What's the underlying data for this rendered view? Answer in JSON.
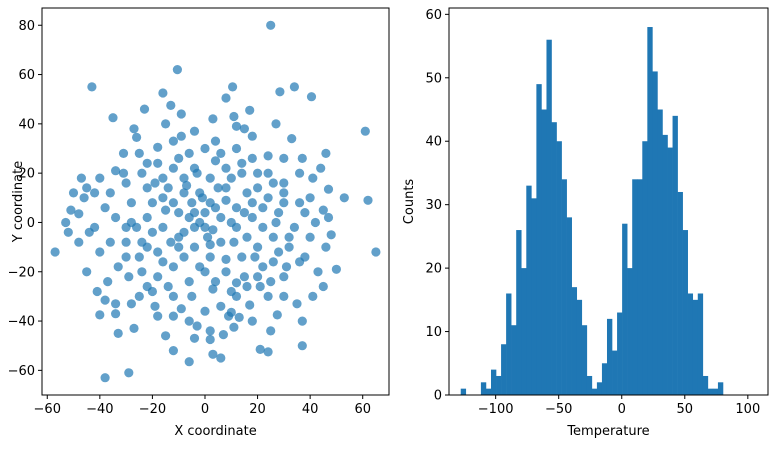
{
  "chart_data": [
    {
      "type": "scatter",
      "xlabel": "X coordinate",
      "ylabel": "Y coordinate",
      "xlim": [
        -62,
        70
      ],
      "ylim": [
        -70,
        87
      ],
      "xticks": [
        -60,
        -40,
        -20,
        0,
        20,
        40,
        60
      ],
      "yticks": [
        -60,
        -40,
        -20,
        0,
        20,
        40,
        60,
        80
      ],
      "color": "#1f77b4",
      "alpha": 0.7,
      "points": [
        [
          25,
          80
        ],
        [
          -10.5,
          62
        ],
        [
          -43,
          55
        ],
        [
          10.5,
          55
        ],
        [
          34,
          55
        ],
        [
          28.5,
          53
        ],
        [
          40.5,
          51
        ],
        [
          8,
          50.5
        ],
        [
          -16,
          52.5
        ],
        [
          -13,
          47.5
        ],
        [
          -23,
          46
        ],
        [
          -9,
          44
        ],
        [
          17,
          45.5
        ],
        [
          -35,
          42.5
        ],
        [
          11,
          43
        ],
        [
          -38,
          -63
        ],
        [
          -29,
          -61
        ],
        [
          6,
          -55
        ],
        [
          -6,
          -56.5
        ],
        [
          3,
          -53.5
        ],
        [
          21,
          -51.5
        ],
        [
          37,
          -50
        ],
        [
          24,
          -52.5
        ],
        [
          -12,
          -52
        ],
        [
          -15,
          -46
        ],
        [
          2,
          -47.5
        ],
        [
          -27,
          -43
        ],
        [
          -33,
          -45
        ],
        [
          50,
          -19
        ],
        [
          -57,
          -12
        ],
        [
          -51,
          5
        ],
        [
          61,
          37
        ],
        [
          62,
          9
        ],
        [
          65,
          -12
        ],
        [
          -45,
          14
        ],
        [
          -48,
          3.5
        ],
        [
          -12,
          -38
        ],
        [
          -4,
          -47
        ],
        [
          2,
          -44
        ],
        [
          7,
          -45.5
        ],
        [
          11,
          -42.5
        ],
        [
          10,
          -36.5
        ],
        [
          13,
          -38.5
        ],
        [
          25,
          -44
        ],
        [
          27.5,
          -37.5
        ],
        [
          37,
          -40
        ],
        [
          41,
          -30
        ],
        [
          35,
          -33
        ],
        [
          30,
          -30
        ],
        [
          17,
          -33.5
        ],
        [
          -34,
          -37
        ],
        [
          -40,
          -37.5
        ],
        [
          -38,
          -31.5
        ],
        [
          -34,
          -33
        ],
        [
          -28,
          -33
        ],
        [
          -25,
          -30
        ],
        [
          -22,
          -26
        ],
        [
          -18,
          -38
        ],
        [
          -19,
          -34
        ],
        [
          -9,
          -35
        ],
        [
          -5,
          -30
        ],
        [
          3,
          -27
        ],
        [
          12,
          -24.5
        ],
        [
          21,
          -26
        ],
        [
          43,
          -20
        ],
        [
          46,
          -10
        ],
        [
          48,
          -5
        ],
        [
          45,
          5
        ],
        [
          40,
          10
        ],
        [
          47,
          13.5
        ],
        [
          44,
          22
        ],
        [
          46,
          28
        ],
        [
          33,
          34
        ],
        [
          30,
          26
        ],
        [
          24,
          27
        ],
        [
          18,
          35
        ],
        [
          12,
          39
        ],
        [
          4,
          33
        ],
        [
          -4,
          37
        ],
        [
          -12,
          33
        ],
        [
          -18,
          30.5
        ],
        [
          -22,
          24
        ],
        [
          -26,
          34.5
        ],
        [
          -31,
          28
        ],
        [
          -34,
          21
        ],
        [
          -40,
          18
        ],
        [
          -42,
          12
        ],
        [
          -38,
          6
        ],
        [
          -44,
          -4
        ],
        [
          -40,
          -12
        ],
        [
          -33,
          -18
        ],
        [
          -29,
          -22
        ],
        [
          -25,
          -14
        ],
        [
          -30,
          -8
        ],
        [
          -20,
          -4
        ],
        [
          -15,
          5
        ],
        [
          -8,
          12
        ],
        [
          -3,
          20
        ],
        [
          4,
          25
        ],
        [
          10,
          18
        ],
        [
          16,
          12
        ],
        [
          22,
          6
        ],
        [
          27,
          0
        ],
        [
          32,
          -6
        ],
        [
          28,
          -12
        ],
        [
          22,
          -18
        ],
        [
          15,
          -22
        ],
        [
          8,
          -15
        ],
        [
          2,
          -9
        ],
        [
          -4,
          -2
        ],
        [
          -10,
          4
        ],
        [
          -16,
          10
        ],
        [
          -22,
          14
        ],
        [
          -28,
          8
        ],
        [
          -34,
          2
        ],
        [
          -30,
          -2
        ],
        [
          -24,
          -8
        ],
        [
          -18,
          -12
        ],
        [
          -12,
          -18
        ],
        [
          -6,
          -24
        ],
        [
          0,
          -20
        ],
        [
          6,
          -8
        ],
        [
          12,
          -2
        ],
        [
          18,
          2
        ],
        [
          24,
          10
        ],
        [
          30,
          16
        ],
        [
          36,
          20
        ],
        [
          38,
          4
        ],
        [
          34,
          -2
        ],
        [
          40,
          -6
        ],
        [
          36,
          -16
        ],
        [
          30,
          -22
        ],
        [
          24,
          -30
        ],
        [
          18,
          -40
        ],
        [
          12,
          -30
        ],
        [
          6,
          -34
        ],
        [
          0,
          -36
        ],
        [
          -6,
          -40
        ],
        [
          -12,
          -30
        ],
        [
          -18,
          -22
        ],
        [
          -24,
          -20
        ],
        [
          -30,
          -14
        ],
        [
          -36,
          -8
        ],
        [
          -42,
          -2
        ],
        [
          -48,
          -8
        ],
        [
          -52,
          -4
        ],
        [
          -46,
          10
        ],
        [
          -50,
          12
        ],
        [
          -36,
          12
        ],
        [
          -30,
          16
        ],
        [
          -24,
          20
        ],
        [
          -18,
          24
        ],
        [
          -12,
          22
        ],
        [
          -6,
          28
        ],
        [
          0,
          30
        ],
        [
          6,
          28
        ],
        [
          12,
          30
        ],
        [
          18,
          26
        ],
        [
          24,
          20
        ],
        [
          30,
          8
        ],
        [
          26,
          -6
        ],
        [
          20,
          -10
        ],
        [
          14,
          -14
        ],
        [
          8,
          -20
        ],
        [
          2,
          -14
        ],
        [
          -4,
          -10
        ],
        [
          -10,
          -6
        ],
        [
          -16,
          -2
        ],
        [
          -22,
          2
        ],
        [
          -28,
          0
        ],
        [
          -20,
          8
        ],
        [
          -14,
          14
        ],
        [
          -8,
          18
        ],
        [
          -2,
          12
        ],
        [
          4,
          6
        ],
        [
          10,
          0
        ],
        [
          16,
          -6
        ],
        [
          22,
          -2
        ],
        [
          28,
          4
        ],
        [
          20,
          14
        ],
        [
          14,
          20
        ],
        [
          8,
          14
        ],
        [
          2,
          8
        ],
        [
          -4,
          4
        ],
        [
          -10,
          -10
        ],
        [
          -16,
          -16
        ],
        [
          -22,
          -10
        ],
        [
          -26,
          -2
        ],
        [
          -20,
          -28
        ],
        [
          -14,
          -26
        ],
        [
          -8,
          -14
        ],
        [
          -2,
          -18
        ],
        [
          4,
          -24
        ],
        [
          10,
          -28
        ],
        [
          16,
          -26
        ],
        [
          20,
          -22
        ],
        [
          26,
          -16
        ],
        [
          32,
          -10
        ],
        [
          38,
          -14
        ],
        [
          42,
          0
        ],
        [
          36,
          8
        ],
        [
          30,
          12
        ],
        [
          26,
          16
        ],
        [
          20,
          20
        ],
        [
          14,
          24
        ],
        [
          8,
          22
        ],
        [
          2,
          18
        ],
        [
          -4,
          22
        ],
        [
          -10,
          26
        ],
        [
          -16,
          18
        ],
        [
          -12,
          8
        ],
        [
          -6,
          2
        ],
        [
          0,
          -2
        ],
        [
          6,
          2
        ],
        [
          12,
          6
        ],
        [
          18,
          8
        ],
        [
          0,
          4
        ],
        [
          -2,
          0
        ],
        [
          3,
          -3
        ],
        [
          -5,
          8
        ],
        [
          8,
          9
        ],
        [
          -8,
          -4
        ],
        [
          5,
          14
        ],
        [
          -1,
          10
        ],
        [
          11,
          -8
        ],
        [
          -13,
          -8
        ],
        [
          1,
          -6
        ],
        [
          -7,
          15
        ],
        [
          15,
          4
        ],
        [
          -19,
          16
        ],
        [
          19,
          -14
        ],
        [
          -25,
          28
        ],
        [
          25,
          -24
        ],
        [
          -31,
          20
        ],
        [
          31,
          -18
        ],
        [
          -37,
          -24
        ],
        [
          37,
          26
        ],
        [
          -9,
          35
        ],
        [
          9,
          -38
        ],
        [
          -15,
          40
        ],
        [
          15,
          38
        ],
        [
          -27,
          38
        ],
        [
          27,
          40
        ],
        [
          -3,
          -42
        ],
        [
          3,
          42
        ],
        [
          -45,
          -20
        ],
        [
          45,
          -26
        ],
        [
          -41,
          -28
        ],
        [
          41,
          18
        ],
        [
          -47,
          18
        ],
        [
          47,
          2
        ],
        [
          -53,
          0
        ],
        [
          53,
          10
        ]
      ]
    },
    {
      "type": "bar",
      "xlabel": "Temperature",
      "ylabel": "Counts",
      "xlim": [
        -137,
        116
      ],
      "ylim": [
        0,
        61
      ],
      "xticks": [
        -100,
        -50,
        0,
        50,
        100
      ],
      "yticks": [
        0,
        10,
        20,
        30,
        40,
        50,
        60
      ],
      "color": "#1f77b4",
      "bin_edges_start": -127.7,
      "bin_width": 4.0,
      "counts": [
        1,
        0,
        0,
        0,
        2,
        1,
        4,
        3,
        8,
        16,
        11,
        26,
        20,
        33,
        31,
        49,
        45,
        56,
        43,
        40,
        34,
        28,
        17,
        15,
        11,
        3,
        1,
        2,
        5,
        12,
        7,
        13,
        27,
        20,
        34,
        34,
        40,
        58,
        51,
        45,
        41,
        39,
        44,
        32,
        26,
        16,
        15,
        16,
        3,
        1,
        1,
        2
      ]
    }
  ]
}
